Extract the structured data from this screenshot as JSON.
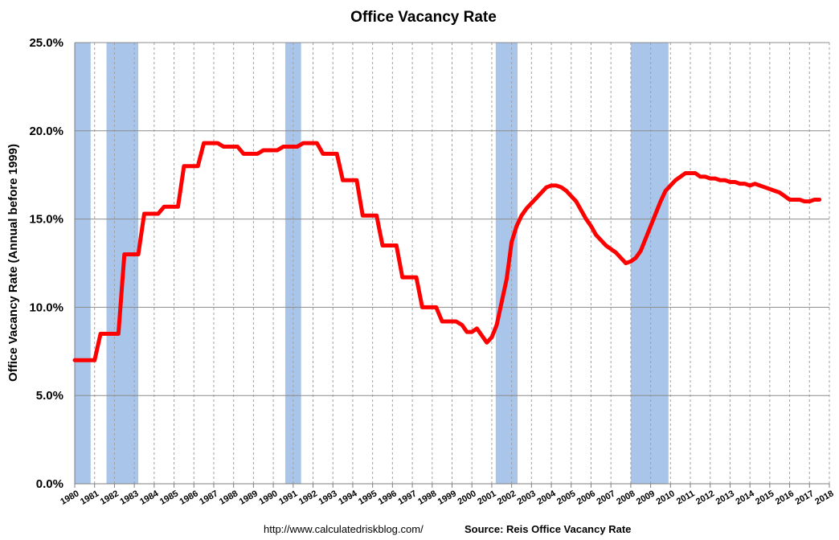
{
  "chart_data": {
    "type": "line",
    "title": "Office Vacancy Rate",
    "xlabel": "",
    "ylabel": "Office Vacancy Rate (Annual before 1999)",
    "xlim": [
      1980,
      2018
    ],
    "ylim": [
      0,
      25
    ],
    "y_ticks": [
      0,
      5,
      10,
      15,
      20,
      25
    ],
    "y_tick_labels": [
      "0.0%",
      "5.0%",
      "10.0%",
      "15.0%",
      "20.0%",
      "25.0%"
    ],
    "x_ticks": [
      1980,
      1981,
      1982,
      1983,
      1984,
      1985,
      1986,
      1987,
      1988,
      1989,
      1990,
      1991,
      1992,
      1993,
      1994,
      1995,
      1996,
      1997,
      1998,
      1999,
      2000,
      2001,
      2002,
      2003,
      2004,
      2005,
      2006,
      2007,
      2008,
      2009,
      2010,
      2011,
      2012,
      2013,
      2014,
      2015,
      2016,
      2017,
      2018
    ],
    "x_tick_labels": [
      "1980",
      "1981",
      "1982",
      "1983",
      "1984",
      "1985",
      "1986",
      "1987",
      "1988",
      "1989",
      "1990",
      "1991",
      "1992",
      "1993",
      "1994",
      "1995",
      "1996",
      "1997",
      "1998",
      "1999",
      "2000",
      "2001",
      "2002",
      "2003",
      "2004",
      "2005",
      "2006",
      "2007",
      "2008",
      "2009",
      "2010",
      "2011",
      "2012",
      "2013",
      "2014",
      "2015",
      "2016",
      "2017",
      "2018"
    ],
    "grid": {
      "horizontal": true,
      "vertical_dashed": true
    },
    "recession_shading": [
      {
        "start": 1980.0,
        "end": 1980.8
      },
      {
        "start": 1981.6,
        "end": 1983.2
      },
      {
        "start": 1990.6,
        "end": 1991.4
      },
      {
        "start": 2001.2,
        "end": 2002.3
      },
      {
        "start": 2008.0,
        "end": 2009.9
      }
    ],
    "series": [
      {
        "points": [
          [
            1980.0,
            7.0
          ],
          [
            1981.0,
            7.0
          ],
          [
            1981.3,
            8.5
          ],
          [
            1982.2,
            8.5
          ],
          [
            1982.5,
            13.0
          ],
          [
            1983.2,
            13.0
          ],
          [
            1983.5,
            15.3
          ],
          [
            1984.2,
            15.3
          ],
          [
            1984.5,
            15.7
          ],
          [
            1985.2,
            15.7
          ],
          [
            1985.5,
            18.0
          ],
          [
            1986.2,
            18.0
          ],
          [
            1986.5,
            19.3
          ],
          [
            1987.2,
            19.3
          ],
          [
            1987.5,
            19.1
          ],
          [
            1988.2,
            19.1
          ],
          [
            1988.5,
            18.7
          ],
          [
            1989.2,
            18.7
          ],
          [
            1989.5,
            18.9
          ],
          [
            1990.2,
            18.9
          ],
          [
            1990.5,
            19.1
          ],
          [
            1991.2,
            19.1
          ],
          [
            1991.5,
            19.3
          ],
          [
            1992.2,
            19.3
          ],
          [
            1992.5,
            18.7
          ],
          [
            1993.2,
            18.7
          ],
          [
            1993.5,
            17.2
          ],
          [
            1994.2,
            17.2
          ],
          [
            1994.5,
            15.2
          ],
          [
            1995.2,
            15.2
          ],
          [
            1995.5,
            13.5
          ],
          [
            1996.2,
            13.5
          ],
          [
            1996.5,
            11.7
          ],
          [
            1997.2,
            11.7
          ],
          [
            1997.5,
            10.0
          ],
          [
            1998.2,
            10.0
          ],
          [
            1998.5,
            9.2
          ],
          [
            1999.2,
            9.2
          ],
          [
            1999.5,
            9.0
          ],
          [
            1999.75,
            8.6
          ],
          [
            2000.0,
            8.6
          ],
          [
            2000.25,
            8.8
          ],
          [
            2000.5,
            8.4
          ],
          [
            2000.75,
            8.0
          ],
          [
            2001.0,
            8.3
          ],
          [
            2001.25,
            9.0
          ],
          [
            2001.5,
            10.3
          ],
          [
            2001.75,
            11.6
          ],
          [
            2002.0,
            13.7
          ],
          [
            2002.25,
            14.6
          ],
          [
            2002.5,
            15.2
          ],
          [
            2002.75,
            15.6
          ],
          [
            2003.0,
            15.9
          ],
          [
            2003.25,
            16.2
          ],
          [
            2003.5,
            16.5
          ],
          [
            2003.75,
            16.8
          ],
          [
            2004.0,
            16.9
          ],
          [
            2004.25,
            16.9
          ],
          [
            2004.5,
            16.8
          ],
          [
            2004.75,
            16.6
          ],
          [
            2005.0,
            16.3
          ],
          [
            2005.25,
            16.0
          ],
          [
            2005.5,
            15.5
          ],
          [
            2005.75,
            15.0
          ],
          [
            2006.0,
            14.6
          ],
          [
            2006.25,
            14.1
          ],
          [
            2006.5,
            13.8
          ],
          [
            2006.75,
            13.5
          ],
          [
            2007.0,
            13.3
          ],
          [
            2007.25,
            13.1
          ],
          [
            2007.5,
            12.8
          ],
          [
            2007.75,
            12.5
          ],
          [
            2008.0,
            12.6
          ],
          [
            2008.25,
            12.8
          ],
          [
            2008.5,
            13.2
          ],
          [
            2008.75,
            13.9
          ],
          [
            2009.0,
            14.6
          ],
          [
            2009.25,
            15.3
          ],
          [
            2009.5,
            16.0
          ],
          [
            2009.75,
            16.6
          ],
          [
            2010.0,
            16.9
          ],
          [
            2010.25,
            17.2
          ],
          [
            2010.5,
            17.4
          ],
          [
            2010.75,
            17.6
          ],
          [
            2011.0,
            17.6
          ],
          [
            2011.25,
            17.6
          ],
          [
            2011.5,
            17.4
          ],
          [
            2011.75,
            17.4
          ],
          [
            2012.0,
            17.3
          ],
          [
            2012.25,
            17.3
          ],
          [
            2012.5,
            17.2
          ],
          [
            2012.75,
            17.2
          ],
          [
            2013.0,
            17.1
          ],
          [
            2013.25,
            17.1
          ],
          [
            2013.5,
            17.0
          ],
          [
            2013.75,
            17.0
          ],
          [
            2014.0,
            16.9
          ],
          [
            2014.25,
            17.0
          ],
          [
            2014.5,
            16.9
          ],
          [
            2014.75,
            16.8
          ],
          [
            2015.0,
            16.7
          ],
          [
            2015.25,
            16.6
          ],
          [
            2015.5,
            16.5
          ],
          [
            2015.75,
            16.3
          ],
          [
            2016.0,
            16.1
          ],
          [
            2016.25,
            16.1
          ],
          [
            2016.5,
            16.1
          ],
          [
            2016.75,
            16.0
          ],
          [
            2017.0,
            16.0
          ],
          [
            2017.25,
            16.1
          ],
          [
            2017.5,
            16.1
          ]
        ]
      }
    ]
  },
  "colors": {
    "line": "#ff0000",
    "recession": "#a9c5ea",
    "grid": "#8c8c8c",
    "vgrid": "#a0a0a0",
    "axis": "#7f7f7f"
  },
  "source": {
    "url": "http://www.calculatedriskblog.com/",
    "credit": "Source: Reis Office Vacancy Rate"
  }
}
